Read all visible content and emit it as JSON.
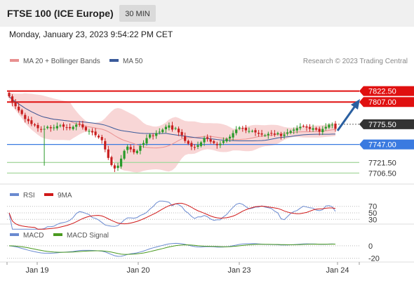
{
  "header": {
    "title": "FTSE 100 (ICE Europe)",
    "interval": "30 MIN",
    "timestamp": "Monday, January 23, 2023 9:54:22 PM CET"
  },
  "legend": {
    "ma20": "MA 20 + Bollinger Bands",
    "ma50": "MA 50",
    "credit": "Research © 2023 Trading Central"
  },
  "colors": {
    "bull": "#2a9a2a",
    "bear": "#c81e1e",
    "ma20": "#e89090",
    "ma50": "#3a5a9a",
    "band": "#f6cccc",
    "resistance": "#e01010",
    "support": "#3a7ae0",
    "pivot": "#444444",
    "minor": "#a8d8a0",
    "arrow": "#2a5fa0",
    "rsi": "#6a8ad0",
    "rsi_ma": "#d01818",
    "macd": "#6a8ad0",
    "macd_signal": "#4a9a20"
  },
  "chart_data": [
    {
      "type": "candlestick",
      "x_ticks": [
        "Jan 19",
        "Jan 20",
        "Jan 23",
        "Jan 24"
      ],
      "ylim": [
        7695,
        7840
      ],
      "closes": [
        7815,
        7806,
        7801,
        7795,
        7790,
        7783,
        7780,
        7776,
        7774,
        7770,
        7768,
        7769,
        7772,
        7770,
        7771,
        7773,
        7774,
        7772,
        7771,
        7770,
        7772,
        7775,
        7776,
        7771,
        7767,
        7766,
        7764,
        7760,
        7757,
        7753,
        7740,
        7728,
        7718,
        7713,
        7717,
        7727,
        7738,
        7744,
        7740,
        7736,
        7738,
        7745,
        7749,
        7756,
        7761,
        7759,
        7763,
        7765,
        7768,
        7772,
        7774,
        7768,
        7770,
        7764,
        7760,
        7752,
        7748,
        7744,
        7743,
        7746,
        7750,
        7756,
        7755,
        7751,
        7749,
        7746,
        7748,
        7752,
        7755,
        7758,
        7763,
        7768,
        7771,
        7770,
        7767,
        7766,
        7766,
        7764,
        7762,
        7761,
        7760,
        7762,
        7763,
        7761,
        7763,
        7759,
        7761,
        7764,
        7766,
        7768,
        7770,
        7772,
        7773,
        7771,
        7769,
        7770,
        7768,
        7765,
        7769,
        7772,
        7775,
        7775,
        7769
      ],
      "levels": [
        {
          "price": 7822.5,
          "label": "7822.50",
          "kind": "resistance"
        },
        {
          "price": 7807.0,
          "label": "7807.00",
          "kind": "resistance"
        },
        {
          "price": 7775.5,
          "label": "7775.50",
          "kind": "pivot"
        },
        {
          "price": 7747.0,
          "label": "7747.00",
          "kind": "support"
        },
        {
          "price": 7721.5,
          "label": "7721.50",
          "kind": "minor"
        },
        {
          "price": 7706.5,
          "label": "7706.50",
          "kind": "minor"
        }
      ]
    },
    {
      "type": "line",
      "series": [
        {
          "name": "RSI"
        },
        {
          "name": "9MA"
        }
      ],
      "ylim": [
        20,
        80
      ],
      "y_ticks": [
        {
          "value": 70,
          "label": "70"
        },
        {
          "value": 50,
          "label": "50"
        },
        {
          "value": 30,
          "label": "30"
        }
      ]
    },
    {
      "type": "line",
      "series": [
        {
          "name": "MACD"
        },
        {
          "name": "MACD Signal"
        }
      ],
      "ylim": [
        -25,
        10
      ],
      "y_ticks": [
        {
          "value": 0,
          "label": "0"
        },
        {
          "value": -20,
          "label": "-20"
        }
      ]
    }
  ]
}
